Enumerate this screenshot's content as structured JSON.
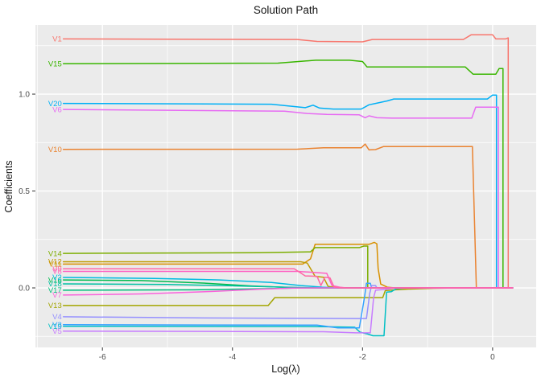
{
  "chart_data": {
    "type": "line",
    "title": "Solution Path",
    "xlabel": "Log(λ)",
    "ylabel": "Coefficients",
    "xlim": [
      -7.03,
      0.67
    ],
    "ylim": [
      -0.307,
      1.357
    ],
    "x_major_ticks": [
      {
        "value": -6,
        "label": "-6"
      },
      {
        "value": -4,
        "label": "-4"
      },
      {
        "value": -2,
        "label": "-2"
      },
      {
        "value": 0,
        "label": "0"
      }
    ],
    "x_minor_ticks": [
      -7,
      -5,
      -3,
      -1
    ],
    "y_major_ticks": [
      {
        "value": 0.0,
        "label": "0.0"
      },
      {
        "value": 0.5,
        "label": "0.5"
      },
      {
        "value": 1.0,
        "label": "1.0"
      }
    ],
    "y_minor_ticks": [
      -0.25,
      0.25,
      0.75,
      1.25
    ],
    "grid": "on",
    "legend_position": "none",
    "labels_at_line_start": true,
    "panel_bg": "#EBEBEB",
    "grid_color": "#FFFFFF",
    "tick_color": "#333333",
    "tick_label_color": "#4D4D4D",
    "series": [
      {
        "name": "V1",
        "color": "#F8766D",
        "points": [
          [
            -6.6,
            1.285
          ],
          [
            -3.0,
            1.282
          ],
          [
            -2.7,
            1.272
          ],
          [
            -2.0,
            1.27
          ],
          [
            -1.85,
            1.282
          ],
          [
            -0.45,
            1.282
          ],
          [
            -0.33,
            1.306
          ],
          [
            0.0,
            1.306
          ],
          [
            0.05,
            1.285
          ],
          [
            0.2,
            1.285
          ],
          [
            0.24,
            1.29
          ],
          [
            0.24,
            0
          ],
          [
            0.31,
            0
          ]
        ]
      },
      {
        "name": "V10",
        "color": "#EA8331",
        "points": [
          [
            -6.6,
            0.715
          ],
          [
            -3.0,
            0.716
          ],
          [
            -2.6,
            0.723
          ],
          [
            -2.02,
            0.723
          ],
          [
            -1.96,
            0.742
          ],
          [
            -1.9,
            0.712
          ],
          [
            -1.8,
            0.714
          ],
          [
            -1.68,
            0.729
          ],
          [
            -0.6,
            0.729
          ],
          [
            -0.31,
            0.729
          ],
          [
            -0.25,
            0
          ],
          [
            0.31,
            0
          ]
        ]
      },
      {
        "name": "V11",
        "color": "#D89000",
        "points": [
          [
            -6.6,
            0.123
          ],
          [
            -2.92,
            0.123
          ],
          [
            -2.8,
            0.15
          ],
          [
            -2.73,
            0.225
          ],
          [
            -1.9,
            0.225
          ],
          [
            -1.82,
            0.235
          ],
          [
            -1.78,
            0.228
          ],
          [
            -1.76,
            0.1
          ],
          [
            -1.72,
            0.02
          ],
          [
            -1.62,
            0.004
          ],
          [
            -1.5,
            0
          ],
          [
            0.31,
            0
          ]
        ]
      },
      {
        "name": "V12",
        "color": "#C09B00",
        "points": [
          [
            -6.6,
            0.135
          ],
          [
            -2.95,
            0.135
          ],
          [
            -2.85,
            0.128
          ],
          [
            -2.73,
            0.06
          ],
          [
            -2.6,
            0.055
          ],
          [
            -2.53,
            0.008
          ],
          [
            -2.42,
            0.002
          ],
          [
            -2.3,
            0
          ],
          [
            0.31,
            0
          ]
        ]
      },
      {
        "name": "V13",
        "color": "#A3A500",
        "points": [
          [
            -6.6,
            -0.091
          ],
          [
            -3.45,
            -0.091
          ],
          [
            -3.35,
            -0.05
          ],
          [
            -2.0,
            -0.05
          ],
          [
            -1.69,
            -0.05
          ],
          [
            -1.65,
            -0.014
          ],
          [
            -1.5,
            -0.01
          ],
          [
            -1.3,
            -0.006
          ],
          [
            -0.9,
            -0.002
          ],
          [
            -0.5,
            0
          ],
          [
            0.31,
            0
          ]
        ]
      },
      {
        "name": "V14",
        "color": "#7CAE00",
        "points": [
          [
            -6.6,
            0.178
          ],
          [
            -3.6,
            0.182
          ],
          [
            -2.8,
            0.186
          ],
          [
            -2.73,
            0.208
          ],
          [
            -2.6,
            0.208
          ],
          [
            -2.05,
            0.208
          ],
          [
            -1.98,
            0.216
          ],
          [
            -1.92,
            0.216
          ],
          [
            -1.92,
            0
          ],
          [
            0.31,
            0
          ]
        ]
      },
      {
        "name": "V15",
        "color": "#39B600",
        "points": [
          [
            -6.6,
            1.157
          ],
          [
            -3.3,
            1.16
          ],
          [
            -2.72,
            1.175
          ],
          [
            -2.2,
            1.175
          ],
          [
            -2.0,
            1.168
          ],
          [
            -1.93,
            1.14
          ],
          [
            -0.42,
            1.14
          ],
          [
            -0.3,
            1.103
          ],
          [
            0.05,
            1.103
          ],
          [
            0.1,
            1.132
          ],
          [
            0.16,
            1.132
          ],
          [
            0.16,
            0
          ],
          [
            0.31,
            0
          ]
        ]
      },
      {
        "name": "V16",
        "color": "#00BB4E",
        "points": [
          [
            -6.6,
            0.041
          ],
          [
            -5.4,
            0.038
          ],
          [
            -4.4,
            0.024
          ],
          [
            -3.7,
            0.01
          ],
          [
            -3.2,
            0.003
          ],
          [
            -2.9,
            0
          ],
          [
            0.31,
            0
          ]
        ]
      },
      {
        "name": "V17",
        "color": "#00BF7D",
        "points": [
          [
            -6.6,
            -0.012
          ],
          [
            -4.6,
            -0.01
          ],
          [
            -3.5,
            -0.004
          ],
          [
            -2.9,
            0
          ],
          [
            0.31,
            0
          ]
        ]
      },
      {
        "name": "V18",
        "color": "#00C1A3",
        "points": [
          [
            -6.6,
            0.021
          ],
          [
            -5.0,
            0.018
          ],
          [
            -4.0,
            0.011
          ],
          [
            -3.2,
            0.004
          ],
          [
            -2.7,
            0
          ],
          [
            0.31,
            0
          ]
        ]
      },
      {
        "name": "V19",
        "color": "#00BFC4",
        "points": [
          [
            -6.6,
            -0.198
          ],
          [
            -2.6,
            -0.2
          ],
          [
            -2.12,
            -0.203
          ],
          [
            -2.04,
            -0.228
          ],
          [
            -1.92,
            -0.238
          ],
          [
            -1.84,
            -0.247
          ],
          [
            -1.67,
            -0.247
          ],
          [
            -1.63,
            -0.022
          ],
          [
            -1.56,
            -0.02
          ],
          [
            -1.48,
            -0.004
          ],
          [
            -1.3,
            0
          ],
          [
            0.31,
            0
          ]
        ]
      },
      {
        "name": "V2",
        "color": "#00BAE0",
        "points": [
          [
            -6.6,
            0.054
          ],
          [
            -5.2,
            0.049
          ],
          [
            -4.2,
            0.041
          ],
          [
            -3.4,
            0.028
          ],
          [
            -2.95,
            0.012
          ],
          [
            -2.62,
            0.004
          ],
          [
            -2.4,
            0
          ],
          [
            0.31,
            0
          ]
        ]
      },
      {
        "name": "V20",
        "color": "#00B0F6",
        "points": [
          [
            -6.6,
            0.952
          ],
          [
            -3.4,
            0.948
          ],
          [
            -2.88,
            0.93
          ],
          [
            -2.76,
            0.943
          ],
          [
            -2.66,
            0.928
          ],
          [
            -2.45,
            0.923
          ],
          [
            -2.02,
            0.923
          ],
          [
            -1.9,
            0.945
          ],
          [
            -1.8,
            0.952
          ],
          [
            -1.62,
            0.965
          ],
          [
            -1.52,
            0.975
          ],
          [
            -0.08,
            0.975
          ],
          [
            0.0,
            0.995
          ],
          [
            0.06,
            0.995
          ],
          [
            0.06,
            0
          ],
          [
            0.31,
            0
          ]
        ]
      },
      {
        "name": "V3",
        "color": "#35A2FF",
        "points": [
          [
            -6.6,
            -0.19
          ],
          [
            -2.7,
            -0.192
          ],
          [
            -2.38,
            -0.206
          ],
          [
            -2.05,
            -0.206
          ],
          [
            -1.97,
            -0.05
          ],
          [
            -1.94,
            0.024
          ],
          [
            -1.88,
            0.024
          ],
          [
            -1.86,
            0
          ],
          [
            0.31,
            0
          ]
        ]
      },
      {
        "name": "V4",
        "color": "#9590FF",
        "points": [
          [
            -6.6,
            -0.149
          ],
          [
            -4.4,
            -0.155
          ],
          [
            -2.1,
            -0.158
          ],
          [
            -1.94,
            -0.158
          ],
          [
            -1.89,
            -0.03
          ],
          [
            -1.86,
            0.012
          ],
          [
            -1.8,
            0.012
          ],
          [
            -1.78,
            0
          ],
          [
            0.31,
            0
          ]
        ]
      },
      {
        "name": "V5",
        "color": "#C77CFF",
        "points": [
          [
            -6.6,
            -0.223
          ],
          [
            -2.6,
            -0.226
          ],
          [
            -2.1,
            -0.232
          ],
          [
            -1.88,
            -0.232
          ],
          [
            -1.83,
            -0.05
          ],
          [
            -1.8,
            -0.012
          ],
          [
            -1.65,
            -0.008
          ],
          [
            -1.5,
            0
          ],
          [
            0.31,
            0
          ]
        ]
      },
      {
        "name": "V6",
        "color": "#E76BF3",
        "points": [
          [
            -6.6,
            0.921
          ],
          [
            -3.2,
            0.912
          ],
          [
            -2.85,
            0.9
          ],
          [
            -2.55,
            0.895
          ],
          [
            -2.05,
            0.893
          ],
          [
            -1.96,
            0.878
          ],
          [
            -1.9,
            0.888
          ],
          [
            -1.78,
            0.878
          ],
          [
            -1.55,
            0.876
          ],
          [
            -0.32,
            0.876
          ],
          [
            -0.26,
            0.933
          ],
          [
            0.09,
            0.933
          ],
          [
            0.09,
            0
          ],
          [
            0.31,
            0
          ]
        ]
      },
      {
        "name": "V7",
        "color": "#FA62DB",
        "points": [
          [
            -6.6,
            -0.037
          ],
          [
            -5.4,
            -0.031
          ],
          [
            -4.3,
            -0.018
          ],
          [
            -3.6,
            -0.007
          ],
          [
            -3.1,
            -0.001
          ],
          [
            -2.6,
            0
          ],
          [
            0.31,
            0
          ]
        ]
      },
      {
        "name": "V8",
        "color": "#FF61C3",
        "points": [
          [
            -6.6,
            0.085
          ],
          [
            -3.0,
            0.085
          ],
          [
            -2.75,
            0.08
          ],
          [
            -2.55,
            0.075
          ],
          [
            -2.47,
            0.012
          ],
          [
            -2.35,
            0.004
          ],
          [
            -2.25,
            0
          ],
          [
            0.31,
            0
          ]
        ]
      },
      {
        "name": "V9",
        "color": "#FF67A4",
        "points": [
          [
            -6.6,
            0.099
          ],
          [
            -3.05,
            0.099
          ],
          [
            -2.88,
            0.062
          ],
          [
            -2.7,
            0.06
          ],
          [
            -2.64,
            0.012
          ],
          [
            -2.58,
            0.055
          ],
          [
            -2.5,
            0.052
          ],
          [
            -2.44,
            0.006
          ],
          [
            -2.36,
            0
          ],
          [
            0.31,
            0
          ]
        ]
      }
    ]
  }
}
